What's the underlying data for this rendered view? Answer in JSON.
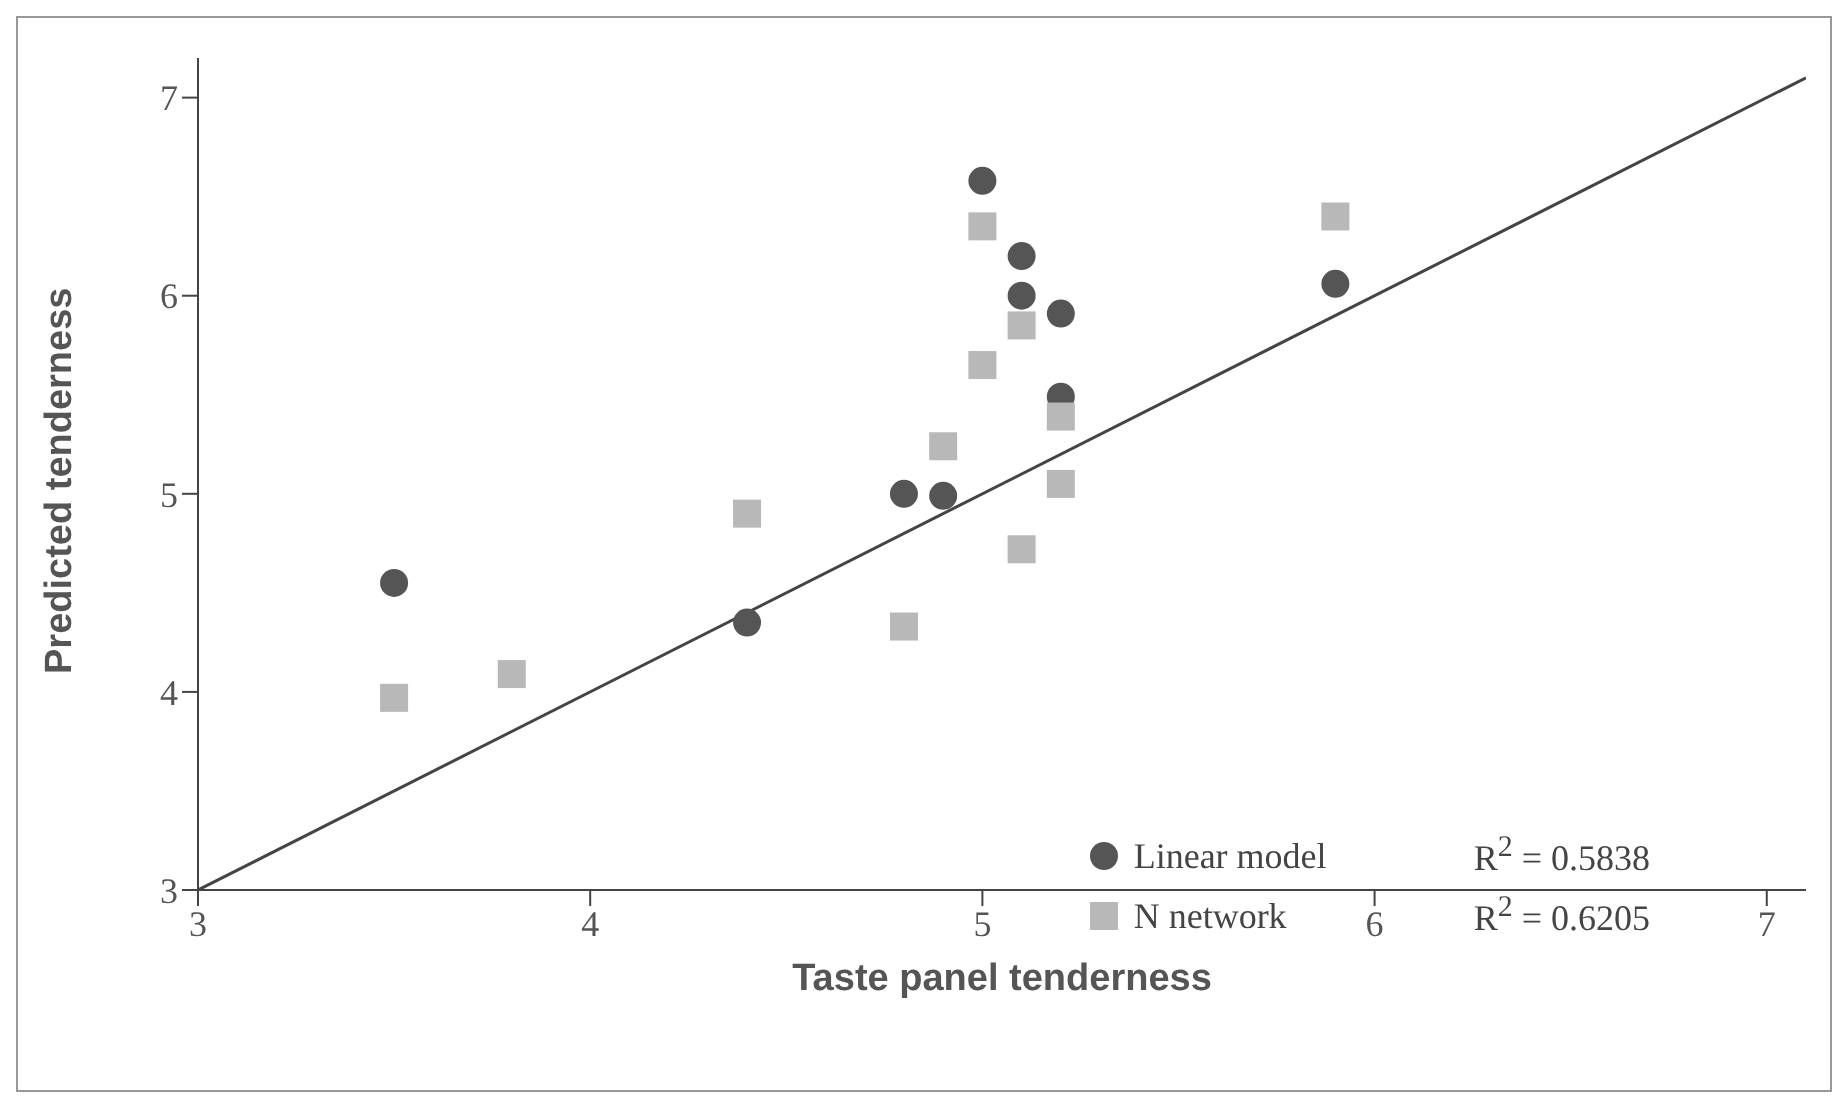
{
  "chart_data": {
    "type": "scatter",
    "xlabel": "Taste panel tenderness",
    "ylabel": "Predicted tenderness",
    "xlim": [
      3,
      7.1
    ],
    "ylim": [
      3,
      7.2
    ],
    "xticks": [
      3,
      4,
      5,
      6,
      7
    ],
    "yticks": [
      3,
      4,
      5,
      6,
      7
    ],
    "grid": false,
    "legend": "bottom right",
    "annotations": [
      "R$^{2}$ = 0.5838",
      "R$^{2}$ = 0.6205"
    ],
    "series": [
      {
        "name": "Linear model",
        "color": "#555555",
        "marker": "circle",
        "x": [
          3.5,
          4.4,
          4.8,
          4.9,
          5.0,
          5.1,
          5.1,
          5.2,
          5.2,
          5.9
        ],
        "values": [
          4.55,
          4.35,
          5.0,
          4.99,
          6.58,
          6.2,
          6.0,
          5.91,
          5.49,
          6.06
        ]
      },
      {
        "name": "N network",
        "color": "#b8b8b8",
        "marker": "square",
        "x": [
          3.5,
          3.8,
          4.4,
          4.8,
          4.9,
          5.0,
          5.0,
          5.1,
          5.1,
          5.2,
          5.2,
          5.9
        ],
        "values": [
          3.97,
          4.09,
          4.9,
          4.33,
          5.24,
          6.35,
          5.65,
          5.85,
          4.72,
          5.39,
          5.05,
          6.4
        ]
      },
      {
        "type": "line",
        "color": "#444444",
        "marker": "none",
        "x": [
          3,
          7.1
        ],
        "values": [
          3,
          7.1
        ]
      }
    ]
  }
}
